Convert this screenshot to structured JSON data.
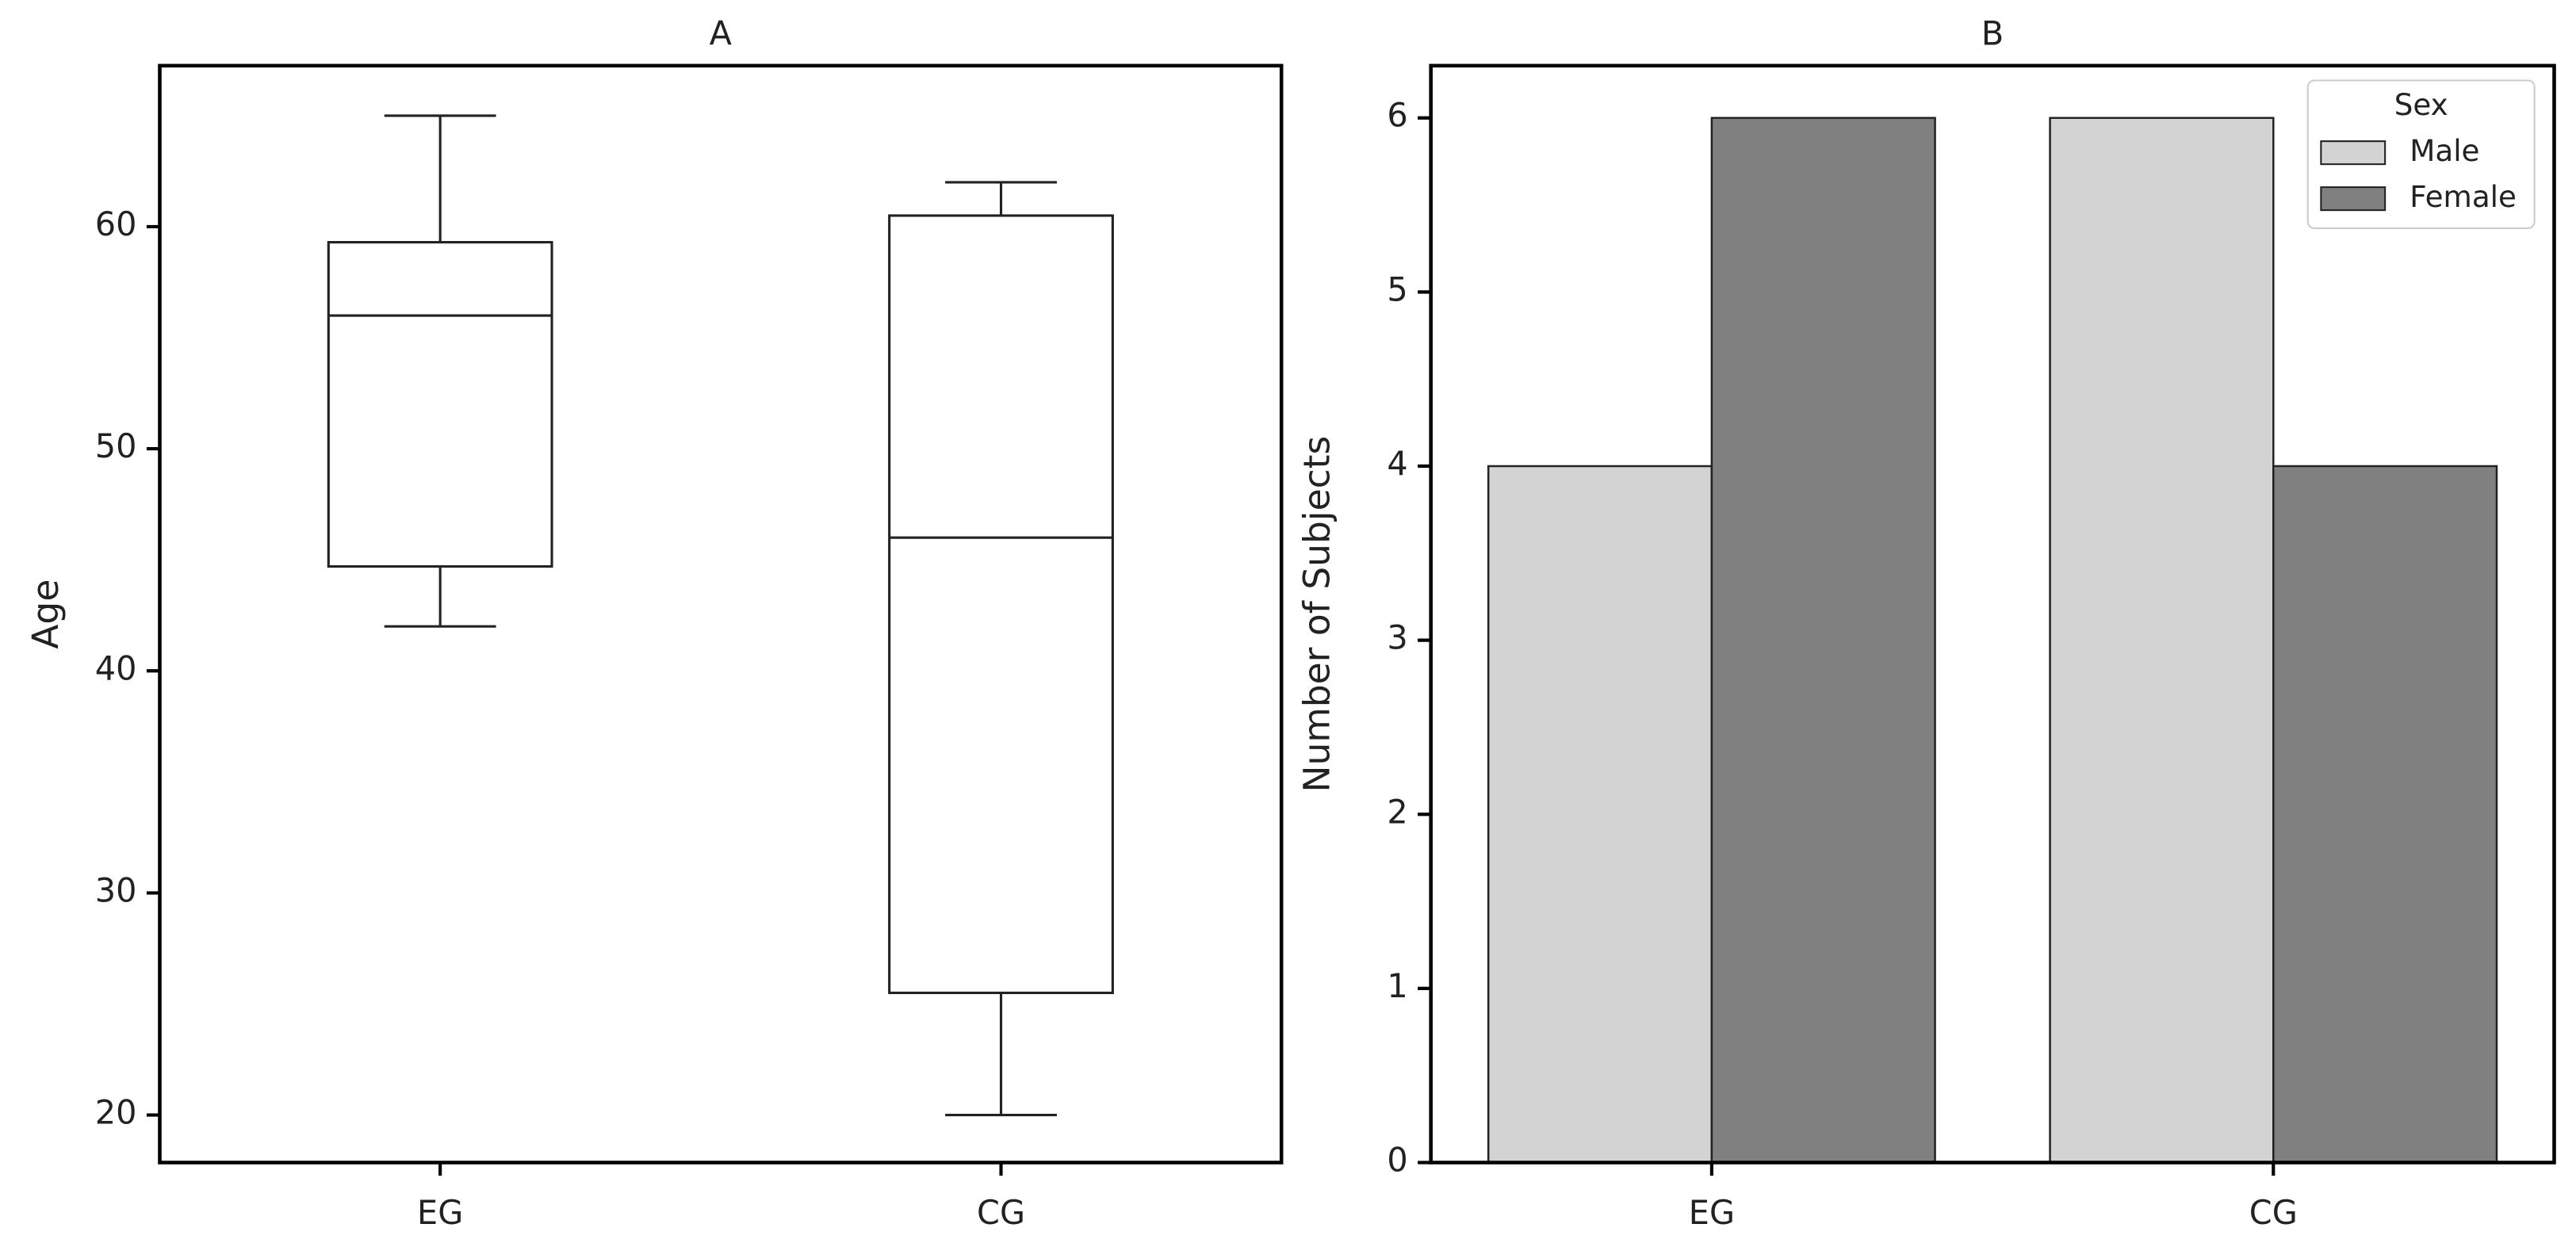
{
  "chart_data": [
    {
      "type": "box",
      "title": "A",
      "y_label": "Age",
      "categories": [
        "EG",
        "CG"
      ],
      "boxes": [
        {
          "whislo": 42,
          "q1": 44.7,
          "med": 56,
          "q3": 59.3,
          "whishi": 65
        },
        {
          "whislo": 20,
          "q1": 25.5,
          "med": 46,
          "q3": 60.5,
          "whishi": 62
        }
      ],
      "color": "#ffffff",
      "ylim": [
        17.86,
        67.25
      ],
      "yticks": [
        20,
        30,
        40,
        50,
        60
      ]
    },
    {
      "type": "bar",
      "title": "B",
      "y_label": "Number of Subjects",
      "categories": [
        "EG",
        "CG"
      ],
      "series": [
        {
          "name": "Male",
          "color": "#d3d3d3",
          "values": [
            4,
            6
          ]
        },
        {
          "name": "Female",
          "color": "#808080",
          "values": [
            6,
            4
          ]
        }
      ],
      "legend_title": "Sex",
      "legend": "upper right",
      "ylim": [
        0,
        6.3
      ],
      "yticks": [
        0,
        1,
        2,
        3,
        4,
        5,
        6
      ]
    }
  ]
}
